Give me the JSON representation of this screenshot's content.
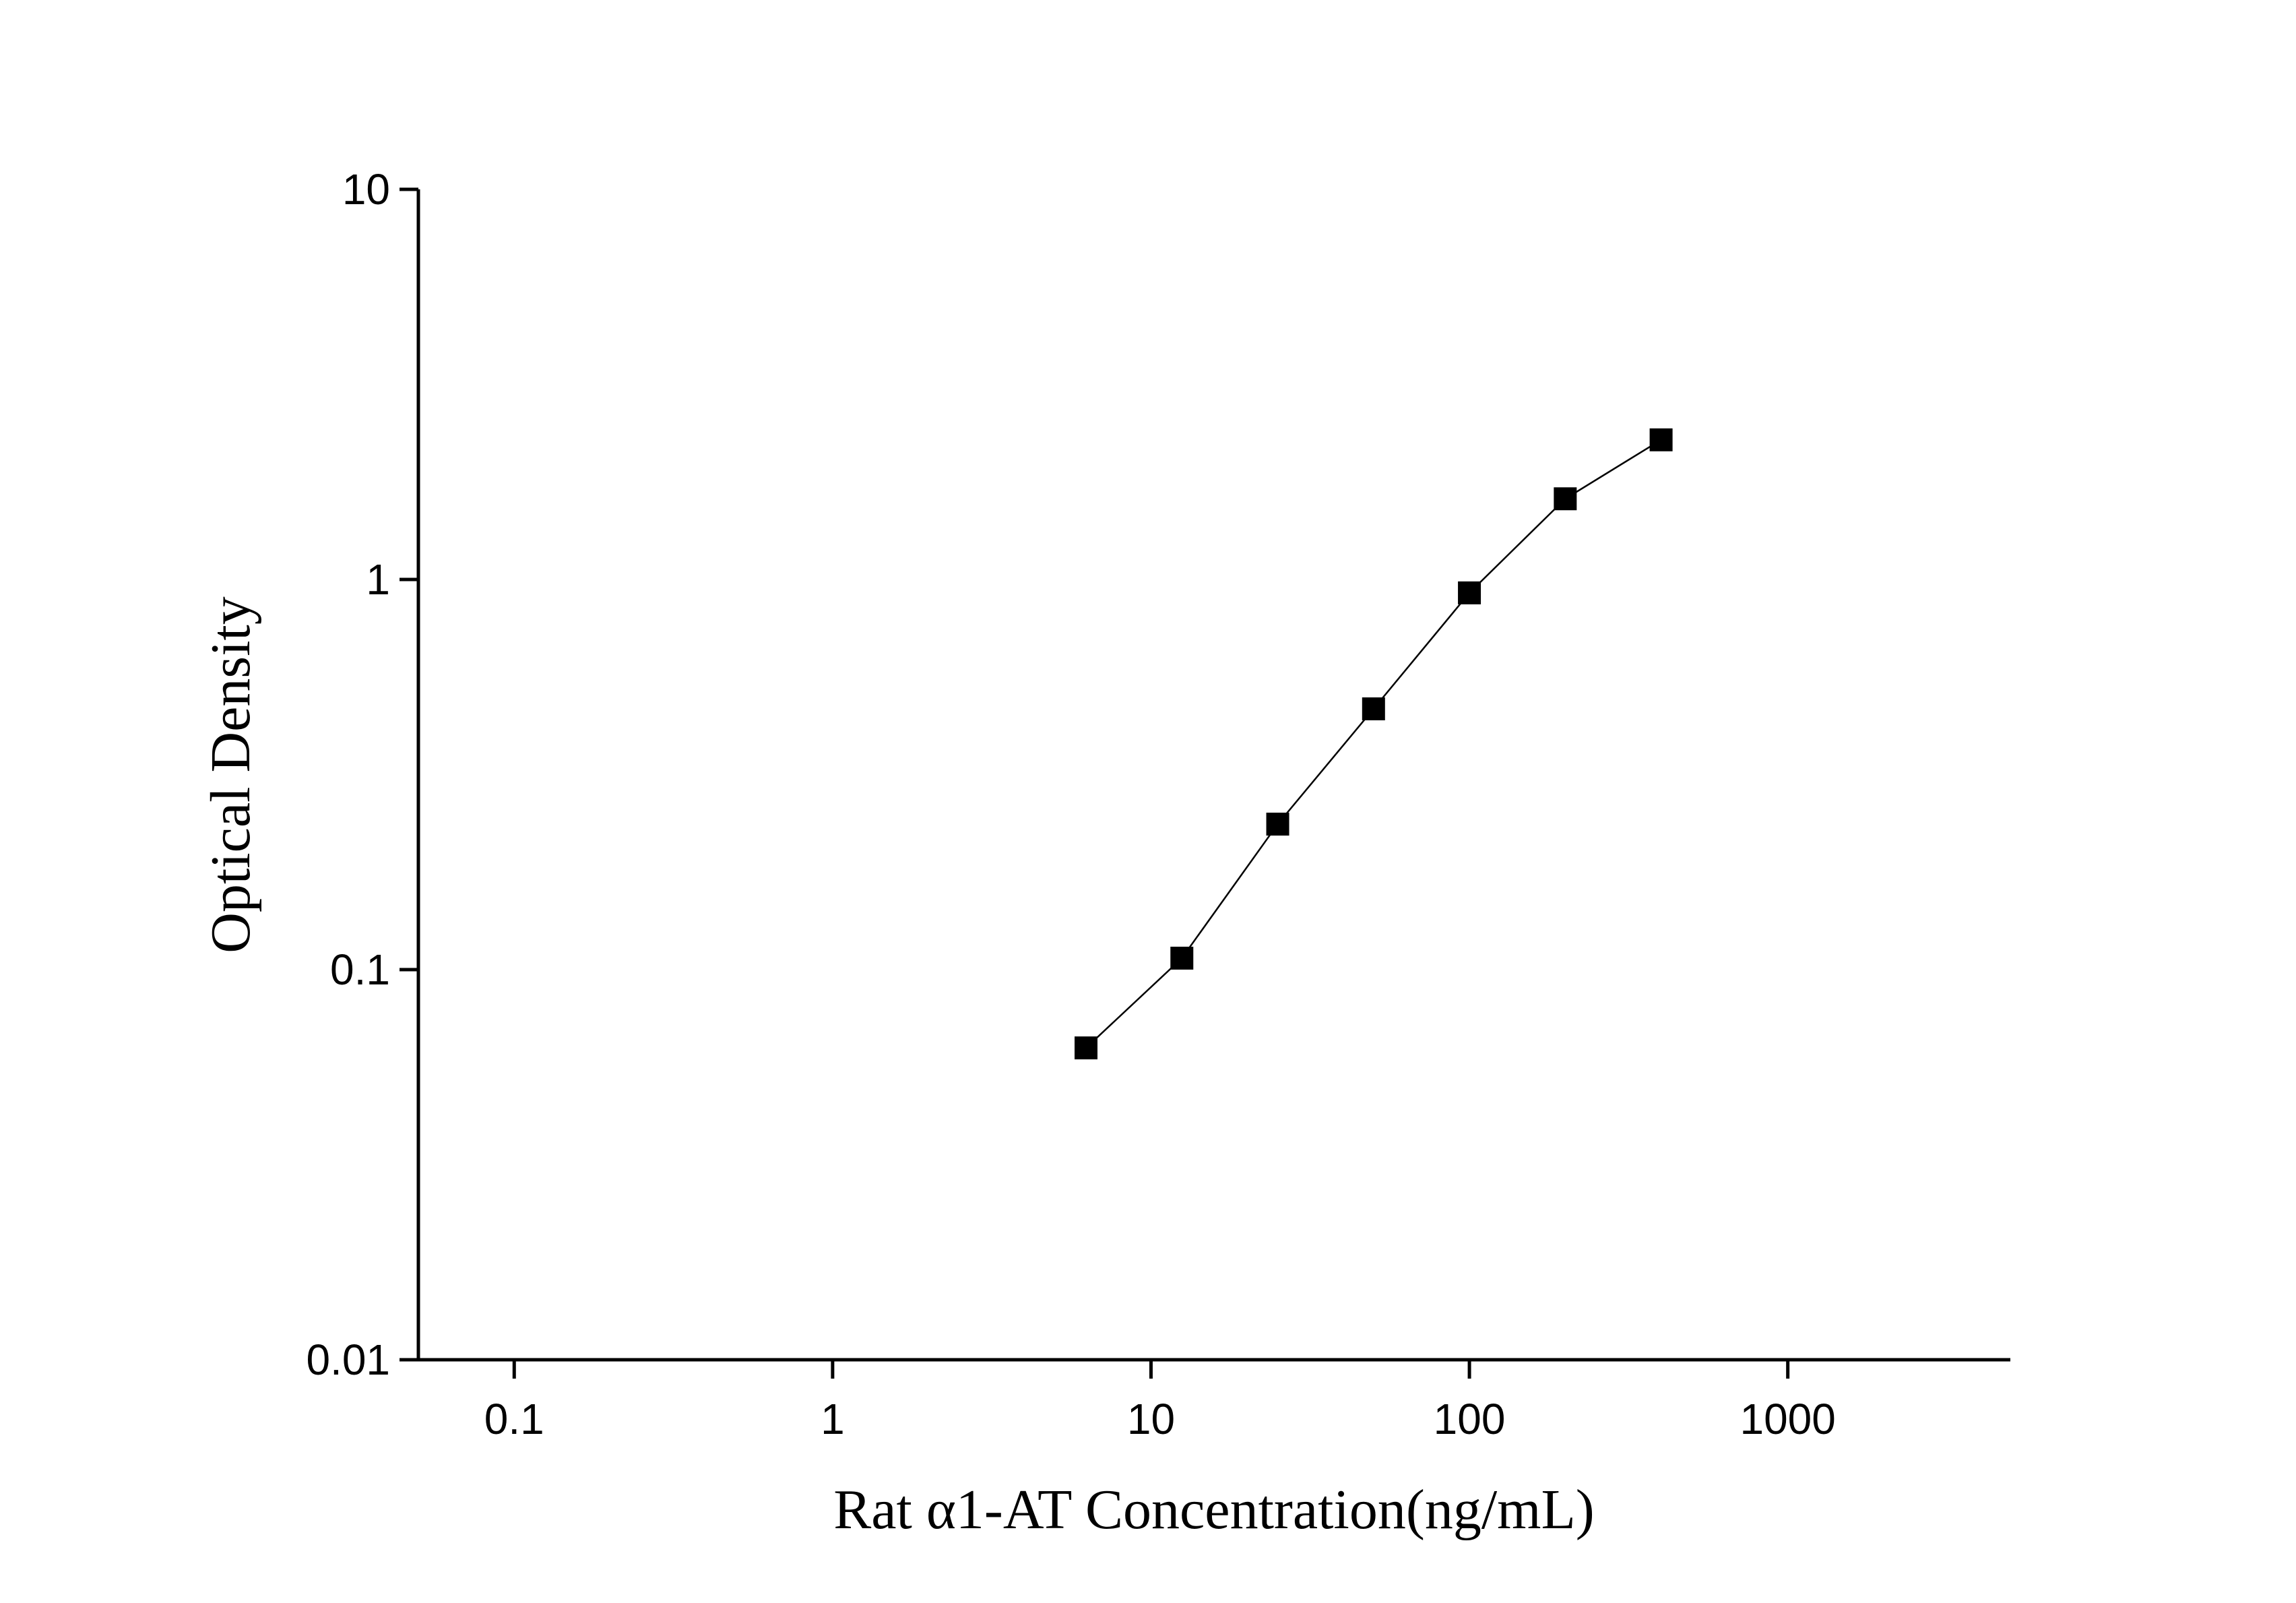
{
  "chart_data": {
    "type": "line",
    "log_x": true,
    "log_y": true,
    "x_label": "Rat α1-AT Concentration(ng/mL)",
    "y_label": "Optical Density",
    "x": [
      6.25,
      12.5,
      25,
      50,
      100,
      200,
      400
    ],
    "series": [
      {
        "color": "#000000",
        "values": [
          0.063,
          0.107,
          0.236,
          0.466,
          0.924,
          1.61,
          2.28
        ]
      }
    ],
    "xlim": [
      0.05,
      5000
    ],
    "ylim": [
      0.01,
      10
    ],
    "xticks": [
      0.1,
      1,
      10,
      100,
      1000
    ],
    "yticks": [
      0.01,
      0.1,
      1,
      10
    ],
    "grid": false
  }
}
